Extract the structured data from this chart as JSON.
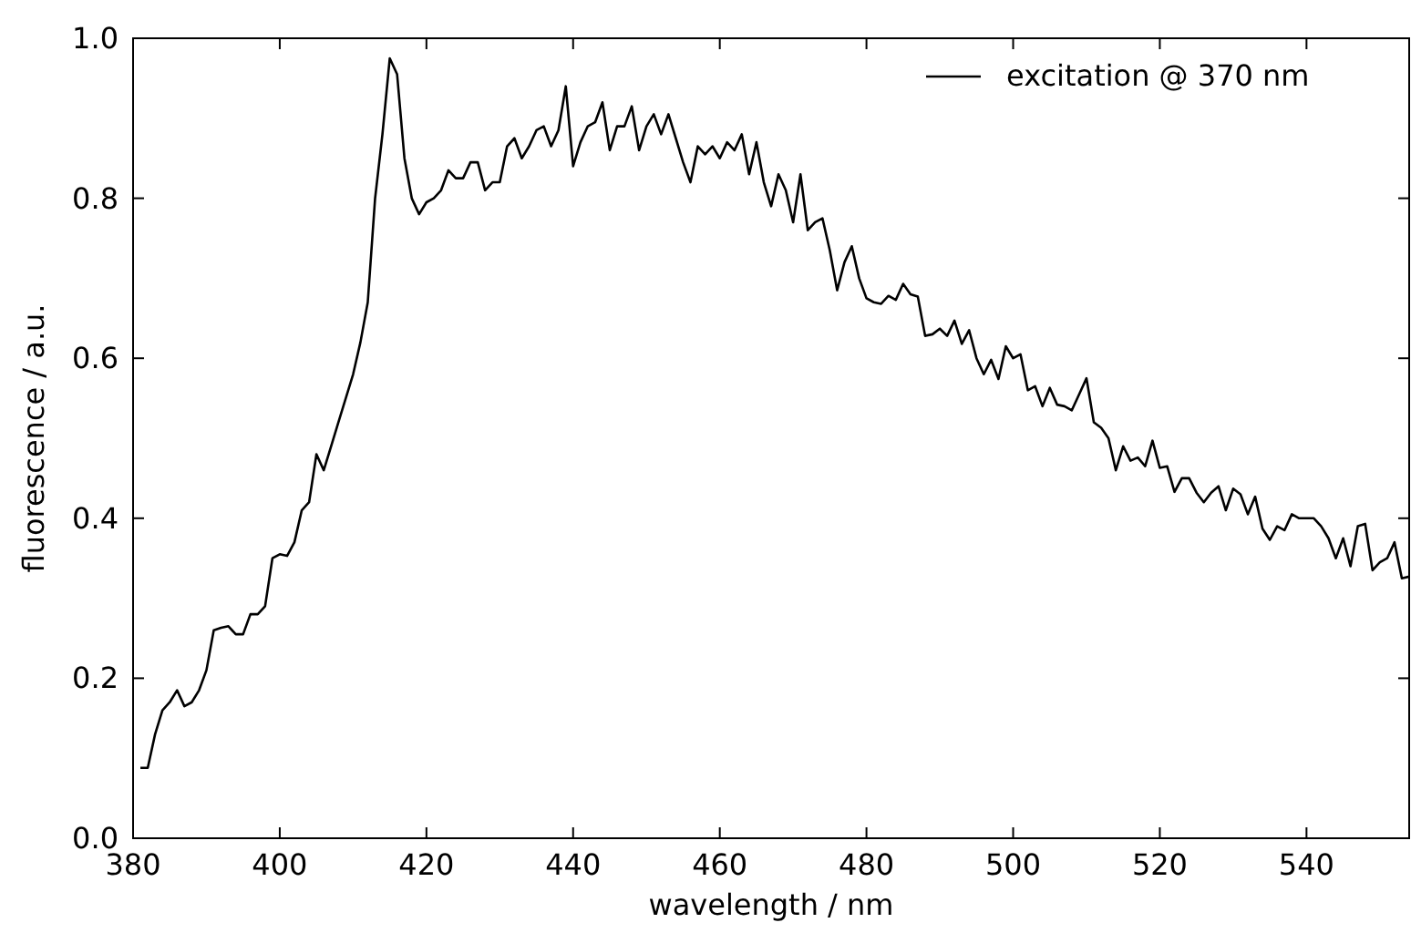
{
  "chart_data": {
    "type": "line",
    "xlabel": "wavelength / nm",
    "ylabel": "fluorescence / a.u.",
    "x": [
      381,
      382,
      383,
      384,
      385,
      386,
      387,
      388,
      389,
      390,
      391,
      392,
      393,
      394,
      395,
      396,
      397,
      398,
      399,
      400,
      401,
      402,
      403,
      404,
      405,
      406,
      407,
      408,
      409,
      410,
      411,
      412,
      413,
      414,
      415,
      416,
      417,
      418,
      419,
      420,
      421,
      422,
      423,
      424,
      425,
      426,
      427,
      428,
      429,
      430,
      431,
      432,
      433,
      434,
      435,
      436,
      437,
      438,
      439,
      440,
      441,
      442,
      443,
      444,
      445,
      446,
      447,
      448,
      449,
      450,
      451,
      452,
      453,
      454,
      455,
      456,
      457,
      458,
      459,
      460,
      461,
      462,
      463,
      464,
      465,
      466,
      467,
      468,
      469,
      470,
      471,
      472,
      473,
      474,
      475,
      476,
      477,
      478,
      479,
      480,
      481,
      482,
      483,
      484,
      485,
      486,
      487,
      488,
      489,
      490,
      491,
      492,
      493,
      494,
      495,
      496,
      497,
      498,
      499,
      500,
      501,
      502,
      503,
      504,
      505,
      506,
      507,
      508,
      509,
      510,
      511,
      512,
      513,
      514,
      515,
      516,
      517,
      518,
      519,
      520,
      521,
      522,
      523,
      524,
      525,
      526,
      527,
      528,
      529,
      530,
      531,
      532,
      533,
      534,
      535,
      536,
      537,
      538,
      539,
      540,
      541,
      542,
      543,
      544,
      545,
      546,
      547,
      548,
      549,
      550,
      551,
      552,
      553,
      554
    ],
    "series": [
      {
        "name": "excitation @ 370 nm",
        "color": "#000000",
        "values": [
          0.088,
          0.088,
          0.13,
          0.16,
          0.17,
          0.185,
          0.165,
          0.17,
          0.185,
          0.21,
          0.26,
          0.263,
          0.265,
          0.255,
          0.255,
          0.28,
          0.28,
          0.29,
          0.35,
          0.355,
          0.353,
          0.37,
          0.41,
          0.42,
          0.48,
          0.46,
          0.49,
          0.52,
          0.55,
          0.58,
          0.62,
          0.67,
          0.8,
          0.88,
          0.975,
          0.955,
          0.85,
          0.8,
          0.78,
          0.795,
          0.8,
          0.81,
          0.835,
          0.825,
          0.825,
          0.845,
          0.845,
          0.81,
          0.82,
          0.82,
          0.865,
          0.875,
          0.85,
          0.865,
          0.885,
          0.89,
          0.865,
          0.885,
          0.94,
          0.84,
          0.87,
          0.89,
          0.895,
          0.92,
          0.86,
          0.89,
          0.89,
          0.915,
          0.86,
          0.89,
          0.905,
          0.88,
          0.905,
          0.875,
          0.845,
          0.82,
          0.865,
          0.855,
          0.865,
          0.85,
          0.87,
          0.86,
          0.88,
          0.83,
          0.87,
          0.82,
          0.79,
          0.83,
          0.81,
          0.77,
          0.83,
          0.76,
          0.77,
          0.775,
          0.735,
          0.685,
          0.72,
          0.74,
          0.7,
          0.675,
          0.67,
          0.668,
          0.678,
          0.673,
          0.693,
          0.68,
          0.677,
          0.628,
          0.63,
          0.637,
          0.628,
          0.647,
          0.618,
          0.635,
          0.6,
          0.58,
          0.598,
          0.574,
          0.615,
          0.6,
          0.605,
          0.56,
          0.565,
          0.54,
          0.563,
          0.542,
          0.54,
          0.535,
          0.555,
          0.575,
          0.52,
          0.513,
          0.5,
          0.46,
          0.49,
          0.472,
          0.476,
          0.465,
          0.497,
          0.463,
          0.465,
          0.433,
          0.45,
          0.45,
          0.432,
          0.42,
          0.432,
          0.44,
          0.41,
          0.437,
          0.43,
          0.405,
          0.427,
          0.387,
          0.373,
          0.39,
          0.385,
          0.405,
          0.4,
          0.4,
          0.4,
          0.39,
          0.375,
          0.35,
          0.375,
          0.34,
          0.39,
          0.393,
          0.335,
          0.345,
          0.35,
          0.37,
          0.325,
          0.327
        ]
      }
    ],
    "xlim": [
      380,
      554
    ],
    "ylim": [
      0,
      1
    ],
    "xticks": [
      380,
      400,
      420,
      440,
      460,
      480,
      500,
      520,
      540
    ],
    "yticks": [
      {
        "value": 0,
        "label": "0.0"
      },
      {
        "value": 0.2,
        "label": "0.2"
      },
      {
        "value": 0.4,
        "label": "0.4"
      },
      {
        "value": 0.6,
        "label": "0.6"
      },
      {
        "value": 0.8,
        "label": "0.8"
      },
      {
        "value": 1,
        "label": "1.0"
      }
    ],
    "legend": "top right",
    "grid": false,
    "marker": "none",
    "line_style": "solid"
  }
}
